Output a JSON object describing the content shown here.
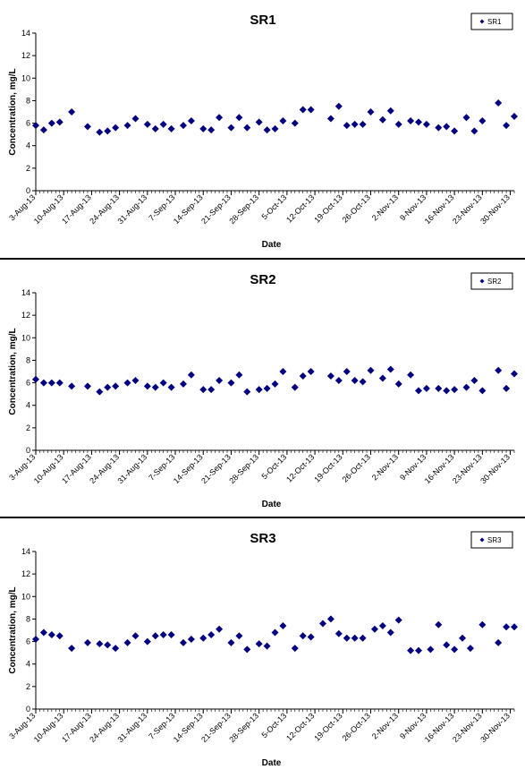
{
  "chart_data": [
    {
      "type": "scatter",
      "title": "SR1",
      "xlabel": "Date",
      "ylabel": "Concentration, mg/L",
      "ylim": [
        0,
        14
      ],
      "yticks": [
        "0",
        "2",
        "4",
        "6",
        "8",
        "10",
        "12",
        "14"
      ],
      "xticks": [
        "3-Aug-13",
        "10-Aug-13",
        "17-Aug-13",
        "24-Aug-13",
        "31-Aug-13",
        "7-Sep-13",
        "14-Sep-13",
        "21-Sep-13",
        "28-Sep-13",
        "5-Oct-13",
        "12-Oct-13",
        "19-Oct-13",
        "26-Oct-13",
        "2-Nov-13",
        "9-Nov-13",
        "16-Nov-13",
        "23-Nov-13",
        "30-Nov-13"
      ],
      "xlim": [
        "2013-08-03",
        "2013-12-01"
      ],
      "grid": false,
      "legend_position": "top-right",
      "marker_color": "#000080",
      "series": [
        {
          "name": "SR1",
          "x": [
            "2013-08-03",
            "2013-08-05",
            "2013-08-07",
            "2013-08-09",
            "2013-08-12",
            "2013-08-16",
            "2013-08-19",
            "2013-08-21",
            "2013-08-23",
            "2013-08-26",
            "2013-08-28",
            "2013-08-31",
            "2013-09-02",
            "2013-09-04",
            "2013-09-06",
            "2013-09-09",
            "2013-09-11",
            "2013-09-14",
            "2013-09-16",
            "2013-09-18",
            "2013-09-21",
            "2013-09-23",
            "2013-09-25",
            "2013-09-28",
            "2013-09-30",
            "2013-10-02",
            "2013-10-04",
            "2013-10-07",
            "2013-10-09",
            "2013-10-11",
            "2013-10-16",
            "2013-10-18",
            "2013-10-20",
            "2013-10-22",
            "2013-10-24",
            "2013-10-26",
            "2013-10-29",
            "2013-10-31",
            "2013-11-02",
            "2013-11-05",
            "2013-11-07",
            "2013-11-09",
            "2013-11-12",
            "2013-11-14",
            "2013-11-16",
            "2013-11-19",
            "2013-11-21",
            "2013-11-23",
            "2013-11-27",
            "2013-11-29",
            "2013-12-01"
          ],
          "y": [
            5.8,
            5.4,
            6.0,
            6.1,
            7.0,
            5.7,
            5.2,
            5.3,
            5.6,
            5.8,
            6.4,
            5.9,
            5.5,
            5.9,
            5.5,
            5.8,
            6.2,
            5.5,
            5.4,
            6.5,
            5.6,
            6.5,
            5.6,
            6.1,
            5.4,
            5.5,
            6.2,
            6.0,
            7.2,
            7.2,
            6.4,
            7.5,
            5.8,
            5.9,
            5.9,
            7.0,
            6.3,
            7.1,
            5.9,
            6.2,
            6.1,
            5.9,
            5.6,
            5.7,
            5.3,
            6.5,
            5.3,
            6.2,
            7.8,
            5.8,
            6.6
          ]
        }
      ]
    },
    {
      "type": "scatter",
      "title": "SR2",
      "xlabel": "Date",
      "ylabel": "Concentration, mg/L",
      "ylim": [
        0,
        14
      ],
      "yticks": [
        "0",
        "2",
        "4",
        "6",
        "8",
        "10",
        "12",
        "14"
      ],
      "xticks": [
        "3-Aug-13",
        "10-Aug-13",
        "17-Aug-13",
        "24-Aug-13",
        "31-Aug-13",
        "7-Sep-13",
        "14-Sep-13",
        "21-Sep-13",
        "28-Sep-13",
        "5-Oct-13",
        "12-Oct-13",
        "19-Oct-13",
        "26-Oct-13",
        "2-Nov-13",
        "9-Nov-13",
        "16-Nov-13",
        "23-Nov-13",
        "30-Nov-13"
      ],
      "xlim": [
        "2013-08-03",
        "2013-12-01"
      ],
      "grid": false,
      "legend_position": "top-right",
      "marker_color": "#000080",
      "series": [
        {
          "name": "SR2",
          "x": [
            "2013-08-03",
            "2013-08-05",
            "2013-08-07",
            "2013-08-09",
            "2013-08-12",
            "2013-08-16",
            "2013-08-19",
            "2013-08-21",
            "2013-08-23",
            "2013-08-26",
            "2013-08-28",
            "2013-08-31",
            "2013-09-02",
            "2013-09-04",
            "2013-09-06",
            "2013-09-09",
            "2013-09-11",
            "2013-09-14",
            "2013-09-16",
            "2013-09-18",
            "2013-09-21",
            "2013-09-23",
            "2013-09-25",
            "2013-09-28",
            "2013-09-30",
            "2013-10-02",
            "2013-10-04",
            "2013-10-07",
            "2013-10-09",
            "2013-10-11",
            "2013-10-16",
            "2013-10-18",
            "2013-10-20",
            "2013-10-22",
            "2013-10-24",
            "2013-10-26",
            "2013-10-29",
            "2013-10-31",
            "2013-11-02",
            "2013-11-05",
            "2013-11-07",
            "2013-11-09",
            "2013-11-12",
            "2013-11-14",
            "2013-11-16",
            "2013-11-19",
            "2013-11-21",
            "2013-11-23",
            "2013-11-27",
            "2013-11-29",
            "2013-12-01"
          ],
          "y": [
            6.3,
            6.0,
            6.0,
            6.0,
            5.7,
            5.7,
            5.2,
            5.6,
            5.7,
            6.0,
            6.2,
            5.7,
            5.6,
            6.0,
            5.6,
            5.9,
            6.7,
            5.4,
            5.4,
            6.2,
            6.0,
            6.7,
            5.2,
            5.4,
            5.5,
            5.9,
            7.0,
            5.6,
            6.6,
            7.0,
            6.6,
            6.2,
            7.0,
            6.2,
            6.1,
            7.1,
            6.4,
            7.2,
            5.9,
            6.7,
            5.3,
            5.5,
            5.5,
            5.3,
            5.4,
            5.6,
            6.2,
            5.3,
            7.1,
            5.5,
            6.8
          ]
        }
      ]
    },
    {
      "type": "scatter",
      "title": "SR3",
      "xlabel": "Date",
      "ylabel": "Concentration, mg/L",
      "ylim": [
        0,
        14
      ],
      "yticks": [
        "0",
        "2",
        "4",
        "6",
        "8",
        "10",
        "12",
        "14"
      ],
      "xticks": [
        "3-Aug-13",
        "10-Aug-13",
        "17-Aug-13",
        "24-Aug-13",
        "31-Aug-13",
        "7-Sep-13",
        "14-Sep-13",
        "21-Sep-13",
        "28-Sep-13",
        "5-Oct-13",
        "12-Oct-13",
        "19-Oct-13",
        "26-Oct-13",
        "2-Nov-13",
        "9-Nov-13",
        "16-Nov-13",
        "23-Nov-13",
        "30-Nov-13"
      ],
      "xlim": [
        "2013-08-03",
        "2013-12-01"
      ],
      "grid": false,
      "legend_position": "top-right",
      "marker_color": "#000080",
      "series": [
        {
          "name": "SR3",
          "x": [
            "2013-08-03",
            "2013-08-05",
            "2013-08-07",
            "2013-08-09",
            "2013-08-12",
            "2013-08-16",
            "2013-08-19",
            "2013-08-21",
            "2013-08-23",
            "2013-08-26",
            "2013-08-28",
            "2013-08-31",
            "2013-09-02",
            "2013-09-04",
            "2013-09-06",
            "2013-09-09",
            "2013-09-11",
            "2013-09-14",
            "2013-09-16",
            "2013-09-18",
            "2013-09-21",
            "2013-09-23",
            "2013-09-25",
            "2013-09-28",
            "2013-09-30",
            "2013-10-02",
            "2013-10-04",
            "2013-10-07",
            "2013-10-09",
            "2013-10-11",
            "2013-10-14",
            "2013-10-16",
            "2013-10-18",
            "2013-10-20",
            "2013-10-22",
            "2013-10-24",
            "2013-10-27",
            "2013-10-29",
            "2013-10-31",
            "2013-11-02",
            "2013-11-05",
            "2013-11-07",
            "2013-11-10",
            "2013-11-12",
            "2013-11-14",
            "2013-11-16",
            "2013-11-18",
            "2013-11-20",
            "2013-11-23",
            "2013-11-27",
            "2013-11-29",
            "2013-12-01"
          ],
          "y": [
            6.2,
            6.8,
            6.6,
            6.5,
            5.4,
            5.9,
            5.8,
            5.7,
            5.4,
            5.9,
            6.5,
            6.0,
            6.5,
            6.6,
            6.6,
            5.9,
            6.2,
            6.3,
            6.6,
            7.1,
            5.9,
            6.5,
            5.3,
            5.8,
            5.6,
            6.8,
            7.4,
            5.4,
            6.5,
            6.4,
            7.6,
            8.0,
            6.7,
            6.3,
            6.3,
            6.3,
            7.1,
            7.4,
            6.8,
            7.9,
            5.2,
            5.2,
            5.3,
            7.5,
            5.7,
            5.3,
            6.3,
            5.4,
            7.5,
            5.9,
            7.3,
            7.3
          ]
        }
      ]
    }
  ]
}
